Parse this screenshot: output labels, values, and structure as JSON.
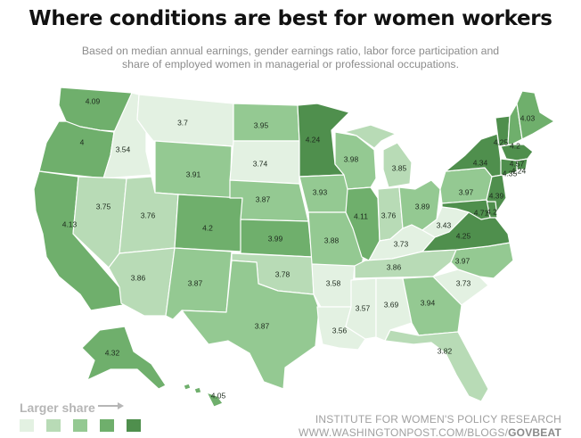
{
  "title": "Where conditions are best for women workers",
  "subtitle_line1": "Based on median annual earnings, gender earnings ratio, labor force participation and",
  "subtitle_line2": "share of employed women in managerial or professional occupations.",
  "legend": {
    "title": "Larger share",
    "colors": [
      "#e3f1e2",
      "#b8dbb6",
      "#94c992",
      "#6faf6c",
      "#4f8f4d"
    ]
  },
  "credits": {
    "org": "INSTITUTE FOR WOMEN'S POLICY RESEARCH",
    "url_prefix": "WWW.WASHINGTONPOST.COM/BLOGS/",
    "url_bold": "GOVBEAT"
  },
  "states": [
    {
      "id": "WA",
      "score": "4.09",
      "color": "#6faf6c"
    },
    {
      "id": "OR",
      "score": "4",
      "color": "#6faf6c"
    },
    {
      "id": "CA",
      "score": "4.13",
      "color": "#6faf6c"
    },
    {
      "id": "ID",
      "score": "3.54",
      "color": "#e3f1e2"
    },
    {
      "id": "NV",
      "score": "3.75",
      "color": "#b8dbb6"
    },
    {
      "id": "MT",
      "score": "3.7",
      "color": "#e3f1e2"
    },
    {
      "id": "WY",
      "score": "3.91",
      "color": "#94c992"
    },
    {
      "id": "UT",
      "score": "3.76",
      "color": "#b8dbb6"
    },
    {
      "id": "AZ",
      "score": "3.86",
      "color": "#b8dbb6"
    },
    {
      "id": "CO",
      "score": "4.2",
      "color": "#6faf6c"
    },
    {
      "id": "NM",
      "score": "3.87",
      "color": "#94c992"
    },
    {
      "id": "ND",
      "score": "3.95",
      "color": "#94c992"
    },
    {
      "id": "SD",
      "score": "3.74",
      "color": "#e3f1e2"
    },
    {
      "id": "NE",
      "score": "3.87",
      "color": "#94c992"
    },
    {
      "id": "KS",
      "score": "3.99",
      "color": "#6faf6c"
    },
    {
      "id": "OK",
      "score": "3.78",
      "color": "#b8dbb6"
    },
    {
      "id": "TX",
      "score": "3.87",
      "color": "#94c992"
    },
    {
      "id": "MN",
      "score": "4.24",
      "color": "#4f8f4d"
    },
    {
      "id": "IA",
      "score": "3.93",
      "color": "#94c992"
    },
    {
      "id": "MO",
      "score": "3.88",
      "color": "#94c992"
    },
    {
      "id": "AR",
      "score": "3.58",
      "color": "#e3f1e2"
    },
    {
      "id": "LA",
      "score": "3.56",
      "color": "#e3f1e2"
    },
    {
      "id": "WI",
      "score": "3.98",
      "color": "#94c992"
    },
    {
      "id": "IL",
      "score": "4.11",
      "color": "#6faf6c"
    },
    {
      "id": "MI",
      "score": "3.85",
      "color": "#b8dbb6"
    },
    {
      "id": "IN",
      "score": "3.76",
      "color": "#b8dbb6"
    },
    {
      "id": "OH",
      "score": "3.89",
      "color": "#94c992"
    },
    {
      "id": "KY",
      "score": "3.73",
      "color": "#e3f1e2"
    },
    {
      "id": "TN",
      "score": "3.86",
      "color": "#b8dbb6"
    },
    {
      "id": "MS",
      "score": "3.57",
      "color": "#e3f1e2"
    },
    {
      "id": "AL",
      "score": "3.69",
      "color": "#e3f1e2"
    },
    {
      "id": "GA",
      "score": "3.94",
      "color": "#94c992"
    },
    {
      "id": "FL",
      "score": "3.82",
      "color": "#b8dbb6"
    },
    {
      "id": "SC",
      "score": "3.73",
      "color": "#e3f1e2"
    },
    {
      "id": "NC",
      "score": "3.97",
      "color": "#94c992"
    },
    {
      "id": "VA",
      "score": "4.25",
      "color": "#4f8f4d"
    },
    {
      "id": "WV",
      "score": "3.43",
      "color": "#e3f1e2"
    },
    {
      "id": "PA",
      "score": "3.97",
      "color": "#94c992"
    },
    {
      "id": "NY",
      "score": "4.34",
      "color": "#4f8f4d"
    },
    {
      "id": "VT",
      "score": "4.25",
      "color": "#4f8f4d"
    },
    {
      "id": "NH",
      "score": "4.2",
      "color": "#6faf6c"
    },
    {
      "id": "ME",
      "score": "4.03",
      "color": "#6faf6c"
    },
    {
      "id": "MA",
      "score": "4.57",
      "color": "#4f8f4d"
    },
    {
      "id": "RI",
      "score": "4.24",
      "color": "#4f8f4d"
    },
    {
      "id": "CT",
      "score": "4.35",
      "color": "#4f8f4d"
    },
    {
      "id": "NJ",
      "score": "4.39",
      "color": "#4f8f4d"
    },
    {
      "id": "DE",
      "score": "4.2",
      "color": "#4f8f4d"
    },
    {
      "id": "MD",
      "score": "4.71",
      "color": "#4f8f4d"
    },
    {
      "id": "AK",
      "score": "4.32",
      "color": "#6faf6c"
    },
    {
      "id": "HI",
      "score": "4.05",
      "color": "#6faf6c"
    }
  ]
}
